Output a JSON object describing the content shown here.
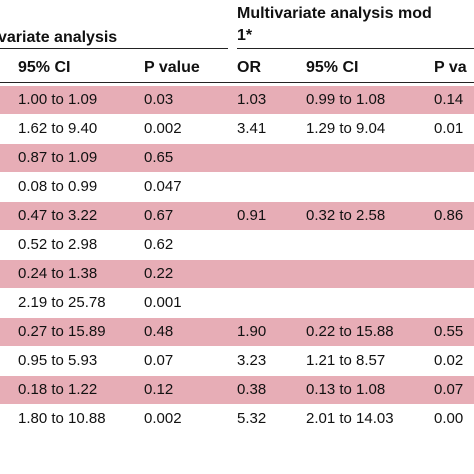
{
  "header": {
    "univariate_title": "variate analysis",
    "multivariate_title_line1": "Multivariate analysis mod",
    "multivariate_title_line2": "1*",
    "columns": {
      "uni_ci": "95% CI",
      "uni_p": "P value",
      "multi_or": "OR",
      "multi_ci": "95% CI",
      "multi_p": "P va"
    }
  },
  "rows": [
    {
      "uni_ci": "1.00 to 1.09",
      "uni_p": "0.03",
      "multi_or": "1.03",
      "multi_ci": "0.99 to 1.08",
      "multi_p": "0.14",
      "shaded": true
    },
    {
      "uni_ci": "1.62 to 9.40",
      "uni_p": "0.002",
      "multi_or": "3.41",
      "multi_ci": "1.29 to 9.04",
      "multi_p": "0.01",
      "shaded": false
    },
    {
      "uni_ci": "0.87 to 1.09",
      "uni_p": "0.65",
      "multi_or": "",
      "multi_ci": "",
      "multi_p": "",
      "shaded": true
    },
    {
      "uni_ci": "0.08 to 0.99",
      "uni_p": "0.047",
      "multi_or": "",
      "multi_ci": "",
      "multi_p": "",
      "shaded": false
    },
    {
      "uni_ci": "0.47 to 3.22",
      "uni_p": "0.67",
      "multi_or": "0.91",
      "multi_ci": "0.32 to 2.58",
      "multi_p": "0.86",
      "shaded": true
    },
    {
      "uni_ci": "0.52 to 2.98",
      "uni_p": "0.62",
      "multi_or": "",
      "multi_ci": "",
      "multi_p": "",
      "shaded": false
    },
    {
      "uni_ci": "0.24 to 1.38",
      "uni_p": "0.22",
      "multi_or": "",
      "multi_ci": "",
      "multi_p": "",
      "shaded": true
    },
    {
      "uni_ci": "2.19 to 25.78",
      "uni_p": "0.001",
      "multi_or": "",
      "multi_ci": "",
      "multi_p": "",
      "shaded": false
    },
    {
      "uni_ci": "0.27 to 15.89",
      "uni_p": "0.48",
      "multi_or": "1.90",
      "multi_ci": "0.22 to 15.88",
      "multi_p": "0.55",
      "shaded": true
    },
    {
      "uni_ci": "0.95 to 5.93",
      "uni_p": "0.07",
      "multi_or": "3.23",
      "multi_ci": "1.21 to 8.57",
      "multi_p": "0.02",
      "shaded": false
    },
    {
      "uni_ci": "0.18 to 1.22",
      "uni_p": "0.12",
      "multi_or": "0.38",
      "multi_ci": "0.13 to 1.08",
      "multi_p": "0.07",
      "shaded": true
    },
    {
      "uni_ci": "1.80 to 10.88",
      "uni_p": "0.002",
      "multi_or": "5.32",
      "multi_ci": "2.01 to 14.03",
      "multi_p": "0.00",
      "shaded": false
    }
  ],
  "colors": {
    "row_shade": "#e7adb6",
    "rule": "#222222"
  }
}
